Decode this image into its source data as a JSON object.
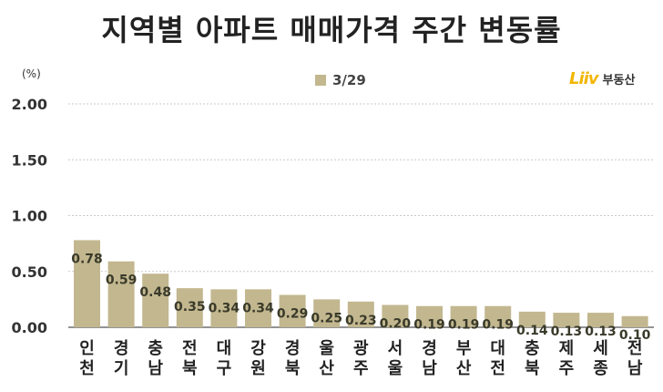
{
  "title": "지역별 아파트 매매가격 주간 변동률",
  "unit": "(%)",
  "brand": {
    "logo": "Liiv",
    "name": "부동산"
  },
  "colors": {
    "bar": "#c2b78f",
    "grid": "#c9c9c9",
    "text": "#222222"
  },
  "chart_data": {
    "type": "bar",
    "title": "지역별 아파트 매매가격 주간 변동률",
    "ylabel": "(%)",
    "xlabel": "",
    "ylim": [
      0,
      2.0
    ],
    "yticks": [
      "2.00",
      "1.50",
      "1.00",
      "0.50",
      "0.00"
    ],
    "yticks_values": [
      2.0,
      1.5,
      1.0,
      0.5,
      0.0
    ],
    "grid": true,
    "legend": "top-center",
    "categories": [
      [
        "인",
        "천"
      ],
      [
        "경",
        "기"
      ],
      [
        "충",
        "남"
      ],
      [
        "전",
        "북"
      ],
      [
        "대",
        "구"
      ],
      [
        "강",
        "원"
      ],
      [
        "경",
        "북"
      ],
      [
        "울",
        "산"
      ],
      [
        "광",
        "주"
      ],
      [
        "서",
        "울"
      ],
      [
        "경",
        "남"
      ],
      [
        "부",
        "산"
      ],
      [
        "대",
        "전"
      ],
      [
        "충",
        "북"
      ],
      [
        "제",
        "주"
      ],
      [
        "세",
        "종"
      ],
      [
        "전",
        "남"
      ]
    ],
    "series": [
      {
        "name": "3/29",
        "values": [
          0.78,
          0.59,
          0.48,
          0.35,
          0.34,
          0.34,
          0.29,
          0.25,
          0.23,
          0.2,
          0.19,
          0.19,
          0.19,
          0.14,
          0.13,
          0.13,
          0.1
        ],
        "labels": [
          "0.78",
          "0.59",
          "0.48",
          "0.35",
          "0.34",
          "0.34",
          "0.29",
          "0.25",
          "0.23",
          "0.20",
          "0.19",
          "0.19",
          "0.19",
          "0.14",
          "0.13",
          "0.13",
          "0.10"
        ]
      }
    ]
  }
}
